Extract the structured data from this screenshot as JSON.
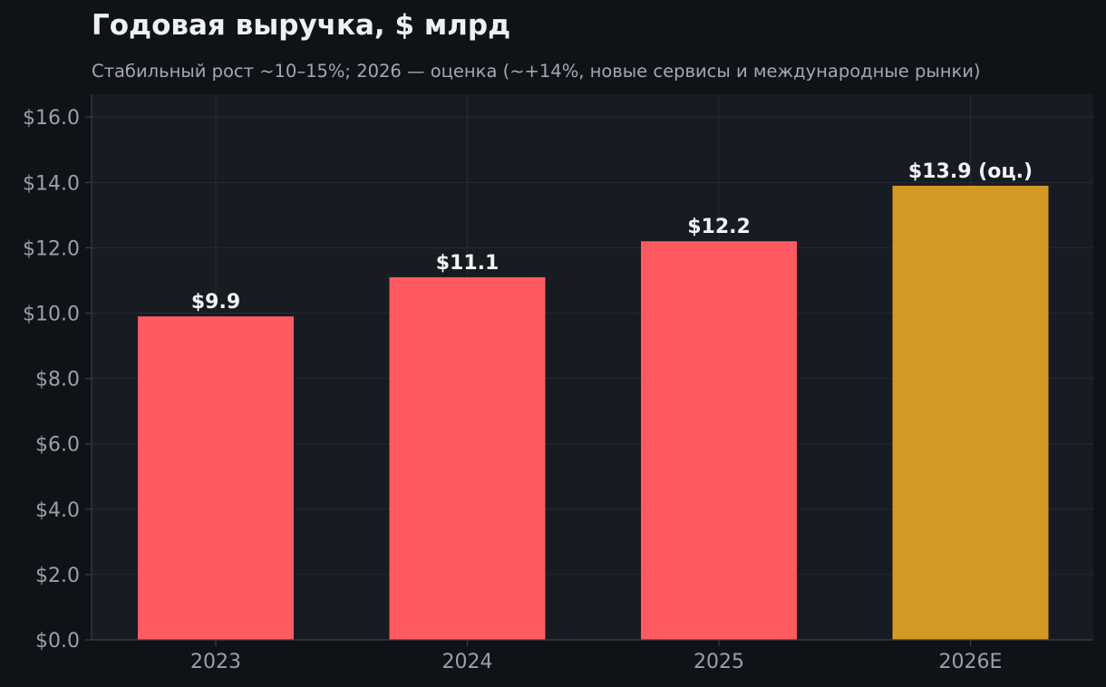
{
  "colors": {
    "background": "#0f1317",
    "plot_background": "#171b22",
    "grid": "#262b34",
    "axis": "#3a3f48",
    "tick_text": "#9aa0a8",
    "title_text": "#eef0f3",
    "subtitle_text": "#a3a8b0",
    "label_text": "#f2f3f5",
    "actual_bar": "#ff5a5f",
    "estimate_bar": "#d39924"
  },
  "chart_data": {
    "type": "bar",
    "title": "Годовая выручка, $ млрд",
    "subtitle": "Стабильный рост ~10–15%; 2026 — оценка (~+14%, новые сервисы и международные рынки)",
    "categories": [
      "2023",
      "2024",
      "2025",
      "2026E"
    ],
    "values": [
      9.9,
      11.1,
      12.2,
      13.9
    ],
    "data_labels": [
      "$9.9",
      "$11.1",
      "$12.2",
      "$13.9 (оц.)"
    ],
    "bar_kinds": [
      "actual",
      "actual",
      "actual",
      "estimate"
    ],
    "xlabel": "",
    "ylabel": "",
    "ylim": [
      0,
      16.7
    ],
    "yticks": [
      0,
      2,
      4,
      6,
      8,
      10,
      12,
      14,
      16
    ],
    "ytick_labels": [
      "$0.0",
      "$2.0",
      "$4.0",
      "$6.0",
      "$8.0",
      "$10.0",
      "$12.0",
      "$14.0",
      "$16.0"
    ],
    "grid": true,
    "legend": "none"
  }
}
